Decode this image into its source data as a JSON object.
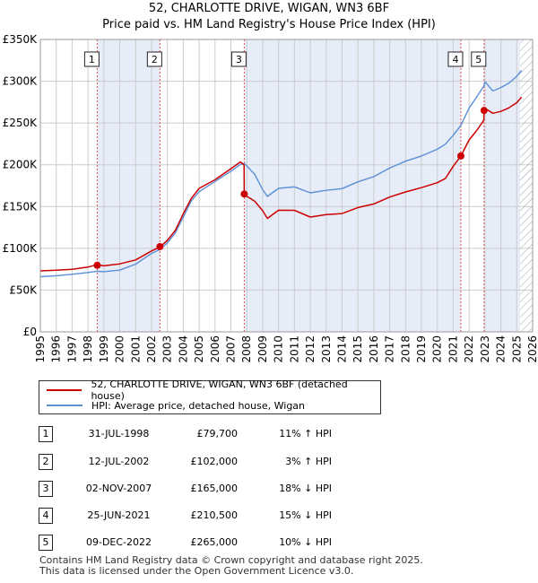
{
  "header": {
    "title": "52, CHARLOTTE DRIVE, WIGAN, WN3 6BF",
    "subtitle": "Price paid vs. HM Land Registry's House Price Index (HPI)"
  },
  "legend": {
    "property_label": "52, CHARLOTTE DRIVE, WIGAN, WN3 6BF (detached house)",
    "hpi_label": "HPI: Average price, detached house, Wigan"
  },
  "transactions": [
    {
      "num": "1",
      "date": "31-JUL-1998",
      "price": "£79,700",
      "hpi": "11% ↑ HPI"
    },
    {
      "num": "2",
      "date": "12-JUL-2002",
      "price": "£102,000",
      "hpi": "3% ↑ HPI"
    },
    {
      "num": "3",
      "date": "02-NOV-2007",
      "price": "£165,000",
      "hpi": "18% ↓ HPI"
    },
    {
      "num": "4",
      "date": "25-JUN-2021",
      "price": "£210,500",
      "hpi": "15% ↓ HPI"
    },
    {
      "num": "5",
      "date": "09-DEC-2022",
      "price": "£265,000",
      "hpi": "10% ↓ HPI"
    }
  ],
  "footer": {
    "line1": "Contains HM Land Registry data © Crown copyright and database right 2025.",
    "line2": "This data is licensed under the Open Government Licence v3.0."
  },
  "colors": {
    "property": "#cc0000",
    "hpi": "#5b8fd6",
    "band": "#e6ecf8",
    "grid": "#cccccc",
    "marker_line": "#e05050"
  },
  "chart_data": {
    "type": "line",
    "title": "52, CHARLOTTE DRIVE, WIGAN, WN3 6BF",
    "xlabel": "",
    "ylabel": "",
    "xlim": [
      1995,
      2026
    ],
    "ylim": [
      0,
      350000
    ],
    "yticks": [
      0,
      50000,
      100000,
      150000,
      200000,
      250000,
      300000,
      350000
    ],
    "ytick_labels": [
      "£0",
      "£50K",
      "£100K",
      "£150K",
      "£200K",
      "£250K",
      "£300K",
      "£350K"
    ],
    "xticks": [
      1995,
      1996,
      1997,
      1998,
      1999,
      2000,
      2001,
      2002,
      2003,
      2004,
      2005,
      2006,
      2007,
      2008,
      2009,
      2010,
      2011,
      2012,
      2013,
      2014,
      2015,
      2016,
      2017,
      2018,
      2019,
      2020,
      2021,
      2022,
      2023,
      2024,
      2025,
      2026
    ],
    "hatch_from": 2025.2,
    "sales": [
      {
        "label": "1",
        "x": 1998.58,
        "y": 79700
      },
      {
        "label": "2",
        "x": 2002.53,
        "y": 102000
      },
      {
        "label": "3",
        "x": 2007.84,
        "y": 165000
      },
      {
        "label": "4",
        "x": 2021.48,
        "y": 210500
      },
      {
        "label": "5",
        "x": 2022.94,
        "y": 265000
      }
    ],
    "series": [
      {
        "name": "52, CHARLOTTE DRIVE, WIGAN, WN3 6BF (detached house)",
        "x": [
          1995,
          1996,
          1997,
          1998,
          1998.58,
          1999,
          2000,
          2001,
          2002,
          2002.53,
          2003,
          2003.5,
          2004,
          2004.5,
          2005,
          2006,
          2007,
          2007.6,
          2007.83,
          2007.84,
          2008,
          2008.5,
          2009,
          2009.3,
          2010,
          2011,
          2012,
          2013,
          2014,
          2015,
          2016,
          2017,
          2018,
          2019,
          2020,
          2020.5,
          2021,
          2021.48,
          2022,
          2022.5,
          2022.93,
          2022.94,
          2023,
          2023.5,
          2024,
          2024.5,
          2025,
          2025.3
        ],
        "values": [
          73000,
          73500,
          74500,
          77000,
          79700,
          78500,
          81000,
          86000,
          97000,
          102000,
          110000,
          122000,
          142000,
          160000,
          172000,
          182000,
          195000,
          203000,
          199000,
          165000,
          162000,
          156000,
          145000,
          136000,
          146000,
          146000,
          138000,
          141000,
          142000,
          149000,
          153000,
          161000,
          167000,
          172000,
          178000,
          183000,
          198000,
          210500,
          230000,
          242000,
          254000,
          265000,
          268000,
          262000,
          264000,
          268000,
          274000,
          281000
        ]
      },
      {
        "name": "HPI: Average price, detached house, Wigan",
        "x": [
          1995,
          1996,
          1997,
          1998,
          1998.58,
          1999,
          2000,
          2001,
          2002,
          2002.53,
          2003,
          2003.5,
          2004,
          2004.5,
          2005,
          2006,
          2007,
          2007.6,
          2007.84,
          2008,
          2008.5,
          2009,
          2009.3,
          2010,
          2011,
          2012,
          2013,
          2014,
          2015,
          2016,
          2017,
          2018,
          2019,
          2020,
          2020.5,
          2021,
          2021.48,
          2022,
          2022.5,
          2022.94,
          2023,
          2023.5,
          2024,
          2024.5,
          2025,
          2025.3
        ],
        "values": [
          66000,
          67000,
          68500,
          70500,
          72000,
          71500,
          73500,
          81000,
          94000,
          99000,
          107000,
          119000,
          138000,
          157000,
          168000,
          180000,
          192000,
          200000,
          201000,
          198000,
          188000,
          170000,
          162000,
          172000,
          174000,
          167000,
          170000,
          172000,
          180000,
          186000,
          196000,
          204000,
          210000,
          218000,
          224000,
          235000,
          247000,
          268000,
          282000,
          295000,
          300000,
          289000,
          293000,
          298000,
          306000,
          313000
        ]
      }
    ]
  }
}
